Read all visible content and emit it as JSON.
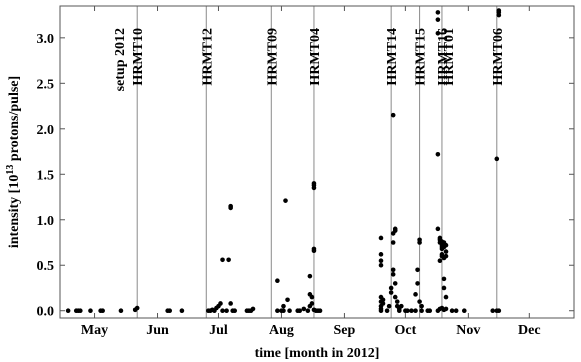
{
  "chart_data": {
    "type": "scatter",
    "xlabel": "time [month in 2012]",
    "ylabel": "intensity [10",
    "ylabel_exponent": "13",
    "ylabel_suffix": " protons/pulse]",
    "xlim": [
      "2012-04-14",
      "2012-12-23"
    ],
    "ylim": [
      -0.08,
      3.35
    ],
    "x_ticks": [
      {
        "date": "2012-05-01",
        "label": "May"
      },
      {
        "date": "2012-06-01",
        "label": "Jun"
      },
      {
        "date": "2012-07-01",
        "label": "Jul"
      },
      {
        "date": "2012-08-01",
        "label": "Aug"
      },
      {
        "date": "2012-09-01",
        "label": "Sep"
      },
      {
        "date": "2012-10-01",
        "label": "Oct"
      },
      {
        "date": "2012-11-01",
        "label": "Nov"
      },
      {
        "date": "2012-12-01",
        "label": "Dec"
      }
    ],
    "y_ticks": [
      {
        "value": 0.0,
        "label": "0.0"
      },
      {
        "value": 0.5,
        "label": "0.5"
      },
      {
        "value": 1.0,
        "label": "1.0"
      },
      {
        "value": 1.5,
        "label": "1.5"
      },
      {
        "value": 2.0,
        "label": "2.0"
      },
      {
        "value": 2.5,
        "label": "2.5"
      },
      {
        "value": 3.0,
        "label": "3.0"
      }
    ],
    "grid": false,
    "experiments": [
      {
        "date": "2012-05-22",
        "label": "HRMT10",
        "label2": "setup 2012"
      },
      {
        "date": "2012-06-25",
        "label": "HRMT12"
      },
      {
        "date": "2012-07-27",
        "label": "HRMT09"
      },
      {
        "date": "2012-08-17",
        "label": "HRMT04"
      },
      {
        "date": "2012-09-24",
        "label": "HRMT14"
      },
      {
        "date": "2012-10-08",
        "label": "HRMT15"
      },
      {
        "date": "2012-10-19",
        "label": "HRMT16",
        "label2": "HRMT01"
      },
      {
        "date": "2012-11-15",
        "label": "HRMT06"
      }
    ],
    "points": [
      [
        "2012-04-18",
        0
      ],
      [
        "2012-04-22",
        0
      ],
      [
        "2012-04-23",
        0
      ],
      [
        "2012-04-24",
        0
      ],
      [
        "2012-04-29",
        0
      ],
      [
        "2012-05-04",
        0
      ],
      [
        "2012-05-05",
        0
      ],
      [
        "2012-05-14",
        0
      ],
      [
        "2012-05-21",
        0.01
      ],
      [
        "2012-05-22",
        0.03
      ],
      [
        "2012-06-06",
        0
      ],
      [
        "2012-06-07",
        0
      ],
      [
        "2012-06-13",
        0
      ],
      [
        "2012-06-26",
        0
      ],
      [
        "2012-06-27",
        0
      ],
      [
        "2012-06-28",
        0.01
      ],
      [
        "2012-06-29",
        0
      ],
      [
        "2012-06-30",
        0.03
      ],
      [
        "2012-07-01",
        0.05
      ],
      [
        "2012-07-02",
        0.08
      ],
      [
        "2012-07-03",
        0
      ],
      [
        "2012-07-03",
        0.56
      ],
      [
        "2012-07-05",
        0
      ],
      [
        "2012-07-06",
        0.56
      ],
      [
        "2012-07-07",
        1.13
      ],
      [
        "2012-07-07",
        1.15
      ],
      [
        "2012-07-07",
        0.08
      ],
      [
        "2012-07-08",
        0
      ],
      [
        "2012-07-09",
        0
      ],
      [
        "2012-07-15",
        0
      ],
      [
        "2012-07-16",
        0
      ],
      [
        "2012-07-17",
        0
      ],
      [
        "2012-07-18",
        0.02
      ],
      [
        "2012-07-30",
        0
      ],
      [
        "2012-07-30",
        0.33
      ],
      [
        "2012-08-01",
        0
      ],
      [
        "2012-08-02",
        0
      ],
      [
        "2012-08-02",
        0.05
      ],
      [
        "2012-08-03",
        1.21
      ],
      [
        "2012-08-04",
        0.12
      ],
      [
        "2012-08-05",
        0
      ],
      [
        "2012-08-09",
        0
      ],
      [
        "2012-08-10",
        0
      ],
      [
        "2012-08-12",
        0.02
      ],
      [
        "2012-08-14",
        0
      ],
      [
        "2012-08-15",
        0.05
      ],
      [
        "2012-08-15",
        0.18
      ],
      [
        "2012-08-15",
        0.38
      ],
      [
        "2012-08-16",
        0.15
      ],
      [
        "2012-08-16",
        0.08
      ],
      [
        "2012-08-17",
        0.66
      ],
      [
        "2012-08-17",
        0.68
      ],
      [
        "2012-08-17",
        1.35
      ],
      [
        "2012-08-17",
        1.38
      ],
      [
        "2012-08-17",
        1.4
      ],
      [
        "2012-08-17",
        0.01
      ],
      [
        "2012-08-18",
        0
      ],
      [
        "2012-08-19",
        0
      ],
      [
        "2012-08-20",
        0
      ],
      [
        "2012-09-19",
        0
      ],
      [
        "2012-09-19",
        0.02
      ],
      [
        "2012-09-19",
        0.05
      ],
      [
        "2012-09-19",
        0.1
      ],
      [
        "2012-09-19",
        0.15
      ],
      [
        "2012-09-19",
        0.5
      ],
      [
        "2012-09-19",
        0.55
      ],
      [
        "2012-09-19",
        0.62
      ],
      [
        "2012-09-19",
        0.8
      ],
      [
        "2012-09-20",
        0.08
      ],
      [
        "2012-09-20",
        0.12
      ],
      [
        "2012-09-22",
        0
      ],
      [
        "2012-09-23",
        0.05
      ],
      [
        "2012-09-24",
        0.2
      ],
      [
        "2012-09-24",
        0.25
      ],
      [
        "2012-09-25",
        0.4
      ],
      [
        "2012-09-25",
        0.45
      ],
      [
        "2012-09-25",
        0.75
      ],
      [
        "2012-09-25",
        0.85
      ],
      [
        "2012-09-26",
        0.88
      ],
      [
        "2012-09-26",
        0.9
      ],
      [
        "2012-09-26",
        0.3
      ],
      [
        "2012-09-26",
        0.15
      ],
      [
        "2012-09-25",
        2.15
      ],
      [
        "2012-09-27",
        0.05
      ],
      [
        "2012-09-27",
        0.1
      ],
      [
        "2012-09-28",
        0
      ],
      [
        "2012-09-28",
        0.02
      ],
      [
        "2012-09-29",
        0.05
      ],
      [
        "2012-10-01",
        0
      ],
      [
        "2012-10-02",
        0
      ],
      [
        "2012-10-04",
        0
      ],
      [
        "2012-10-06",
        0
      ],
      [
        "2012-10-06",
        0.18
      ],
      [
        "2012-10-07",
        0.3
      ],
      [
        "2012-10-07",
        0.45
      ],
      [
        "2012-10-08",
        0.75
      ],
      [
        "2012-10-08",
        0.78
      ],
      [
        "2012-10-08",
        0.1
      ],
      [
        "2012-10-09",
        0
      ],
      [
        "2012-10-09",
        0.05
      ],
      [
        "2012-10-12",
        0
      ],
      [
        "2012-10-13",
        0
      ],
      [
        "2012-10-17",
        0
      ],
      [
        "2012-10-17",
        0.9
      ],
      [
        "2012-10-17",
        1.72
      ],
      [
        "2012-10-17",
        3.05
      ],
      [
        "2012-10-17",
        3.2
      ],
      [
        "2012-10-17",
        3.28
      ],
      [
        "2012-10-18",
        0.8
      ],
      [
        "2012-10-18",
        0.78
      ],
      [
        "2012-10-18",
        0.75
      ],
      [
        "2012-10-18",
        0.55
      ],
      [
        "2012-10-18",
        0.02
      ],
      [
        "2012-10-19",
        0.68
      ],
      [
        "2012-10-19",
        0.7
      ],
      [
        "2012-10-19",
        0.72
      ],
      [
        "2012-10-19",
        0.74
      ],
      [
        "2012-10-19",
        0.76
      ],
      [
        "2012-10-19",
        0.6
      ],
      [
        "2012-10-19",
        0.62
      ],
      [
        "2012-10-19",
        0.03
      ],
      [
        "2012-10-20",
        0.7
      ],
      [
        "2012-10-20",
        0.73
      ],
      [
        "2012-10-20",
        0.75
      ],
      [
        "2012-10-20",
        0.58
      ],
      [
        "2012-10-20",
        0.35
      ],
      [
        "2012-10-20",
        0.25
      ],
      [
        "2012-10-20",
        0.01
      ],
      [
        "2012-10-21",
        0.72
      ],
      [
        "2012-10-21",
        0.65
      ],
      [
        "2012-10-21",
        0.6
      ],
      [
        "2012-10-21",
        0.15
      ],
      [
        "2012-10-21",
        0.02
      ],
      [
        "2012-10-24",
        0
      ],
      [
        "2012-10-26",
        0
      ],
      [
        "2012-10-30",
        0
      ],
      [
        "2012-11-13",
        0
      ],
      [
        "2012-11-15",
        0
      ],
      [
        "2012-11-15",
        1.67
      ],
      [
        "2012-11-16",
        0
      ],
      [
        "2012-11-16",
        3.25
      ],
      [
        "2012-11-16",
        3.28
      ],
      [
        "2012-11-16",
        3.3
      ]
    ]
  }
}
